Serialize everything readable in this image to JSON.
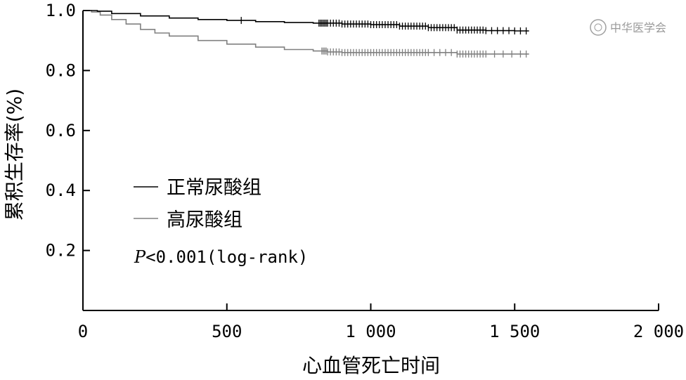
{
  "chart_data": {
    "type": "line",
    "subtype": "kaplan-meier",
    "title": "",
    "xlabel": "心血管死亡时间",
    "ylabel": "累积生存率(%)",
    "xlim": [
      0,
      2000
    ],
    "ylim": [
      0,
      1.0
    ],
    "x_ticks": [
      0,
      500,
      1000,
      1500,
      2000
    ],
    "x_tick_labels": [
      "0",
      "500",
      "1 000",
      "1 500",
      "2 000"
    ],
    "y_ticks": [
      0.2,
      0.4,
      0.6,
      0.8,
      1.0
    ],
    "y_tick_labels": [
      "0.2",
      "0.4",
      "0.6",
      "0.8",
      "1.0"
    ],
    "grid": false,
    "legend_position": "left-center",
    "annotation": "P<0.001(log-rank)",
    "annotation_parts": {
      "italic": "P",
      "rest": "<0.001(log-rank)"
    },
    "watermark": "中华医学会",
    "series": [
      {
        "name": "正常尿酸组",
        "color": "#000000",
        "x": [
          0,
          50,
          100,
          200,
          300,
          400,
          500,
          600,
          700,
          800,
          900,
          1000,
          1100,
          1200,
          1300,
          1400,
          1500,
          1550
        ],
        "y": [
          1.0,
          0.998,
          0.99,
          0.982,
          0.975,
          0.97,
          0.967,
          0.963,
          0.96,
          0.958,
          0.955,
          0.953,
          0.948,
          0.943,
          0.935,
          0.933,
          0.932,
          0.932
        ],
        "censored_x": [
          550,
          820,
          825,
          830,
          835,
          840,
          845,
          850,
          860,
          870,
          880,
          890,
          900,
          910,
          920,
          930,
          940,
          950,
          960,
          970,
          980,
          990,
          1000,
          1010,
          1020,
          1030,
          1040,
          1050,
          1060,
          1070,
          1080,
          1090,
          1100,
          1110,
          1120,
          1130,
          1140,
          1150,
          1160,
          1170,
          1180,
          1190,
          1200,
          1210,
          1220,
          1230,
          1240,
          1250,
          1260,
          1270,
          1280,
          1290,
          1300,
          1310,
          1320,
          1330,
          1340,
          1350,
          1360,
          1370,
          1380,
          1390,
          1400,
          1420,
          1440,
          1460,
          1480,
          1500,
          1520,
          1540
        ]
      },
      {
        "name": "高尿酸组",
        "color": "#808080",
        "x": [
          0,
          30,
          60,
          100,
          150,
          200,
          250,
          300,
          400,
          500,
          600,
          700,
          800,
          850,
          900,
          1000,
          1100,
          1200,
          1300,
          1400,
          1500,
          1550
        ],
        "y": [
          1.0,
          0.995,
          0.985,
          0.97,
          0.955,
          0.937,
          0.925,
          0.915,
          0.9,
          0.888,
          0.878,
          0.87,
          0.865,
          0.862,
          0.86,
          0.86,
          0.86,
          0.86,
          0.855,
          0.855,
          0.855,
          0.855
        ],
        "censored_x": [
          830,
          835,
          840,
          845,
          850,
          860,
          870,
          880,
          890,
          900,
          910,
          920,
          930,
          940,
          950,
          960,
          970,
          980,
          990,
          1000,
          1010,
          1020,
          1030,
          1040,
          1050,
          1060,
          1070,
          1080,
          1090,
          1100,
          1110,
          1120,
          1130,
          1140,
          1150,
          1160,
          1170,
          1180,
          1190,
          1200,
          1220,
          1240,
          1260,
          1280,
          1300,
          1310,
          1320,
          1330,
          1340,
          1350,
          1360,
          1370,
          1380,
          1390,
          1400,
          1430,
          1460,
          1490,
          1520,
          1540
        ]
      }
    ]
  }
}
